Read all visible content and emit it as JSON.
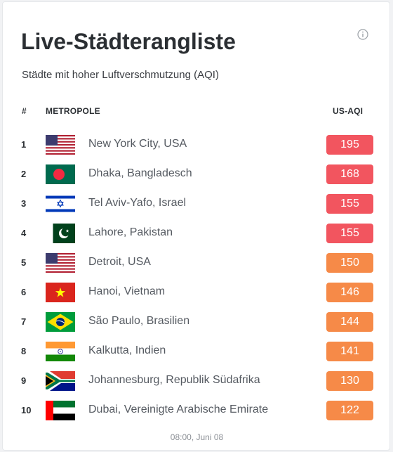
{
  "widget": {
    "title": "Live-Städterangliste",
    "subtitle": "Städte mit hoher Luftverschmutzung (AQI)",
    "info_icon": "info-circle-icon",
    "timestamp": "08:00, Juni 08"
  },
  "table": {
    "headers": {
      "rank": "#",
      "city": "METROPOLE",
      "aqi": "US-AQI"
    },
    "rows": [
      {
        "rank": "1",
        "city": "New York City, USA",
        "flag": "usa",
        "aqi": "195",
        "color": "#f2555f"
      },
      {
        "rank": "2",
        "city": "Dhaka, Bangladesch",
        "flag": "bangladesh",
        "aqi": "168",
        "color": "#f2555f"
      },
      {
        "rank": "3",
        "city": "Tel Aviv-Yafo, Israel",
        "flag": "israel",
        "aqi": "155",
        "color": "#f2555f"
      },
      {
        "rank": "4",
        "city": "Lahore, Pakistan",
        "flag": "pakistan",
        "aqi": "155",
        "color": "#f2555f"
      },
      {
        "rank": "5",
        "city": "Detroit, USA",
        "flag": "usa",
        "aqi": "150",
        "color": "#f68a48"
      },
      {
        "rank": "6",
        "city": "Hanoi, Vietnam",
        "flag": "vietnam",
        "aqi": "146",
        "color": "#f68a48"
      },
      {
        "rank": "7",
        "city": "São Paulo, Brasilien",
        "flag": "brazil",
        "aqi": "144",
        "color": "#f68a48"
      },
      {
        "rank": "8",
        "city": "Kalkutta, Indien",
        "flag": "india",
        "aqi": "141",
        "color": "#f68a48"
      },
      {
        "rank": "9",
        "city": "Johannesburg, Republik Südafrika",
        "flag": "south-africa",
        "aqi": "130",
        "color": "#f68a48"
      },
      {
        "rank": "10",
        "city": "Dubai, Vereinigte Arabische Emirate",
        "flag": "uae",
        "aqi": "122",
        "color": "#f68a48"
      }
    ]
  }
}
